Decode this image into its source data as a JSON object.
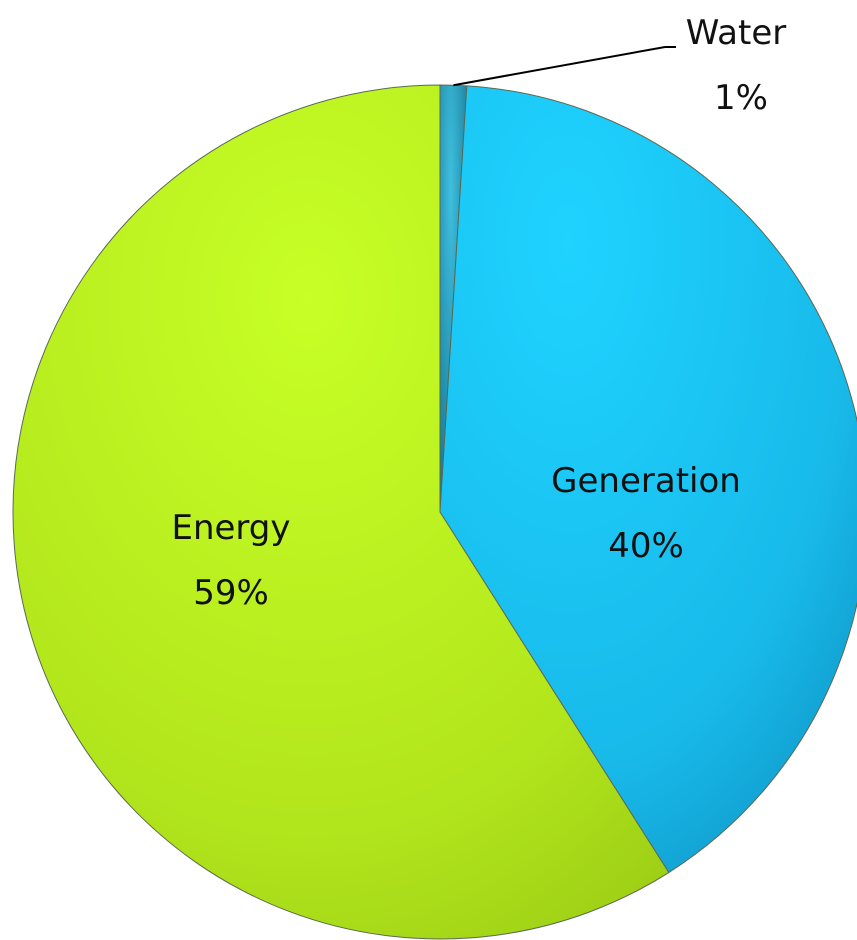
{
  "chart_data": {
    "type": "pie",
    "categories": [
      "Water",
      "Generation",
      "Energy"
    ],
    "values": [
      1,
      40,
      59
    ],
    "value_labels": [
      "1%",
      "40%",
      "59%"
    ],
    "colors": {
      "Water": "#1a8fb0",
      "Generation": "#1cc4ef",
      "Energy": "#b9ec1c"
    },
    "start_angle": "12 o'clock",
    "direction": "clockwise",
    "legend": "none",
    "labels_on_slices": true
  }
}
